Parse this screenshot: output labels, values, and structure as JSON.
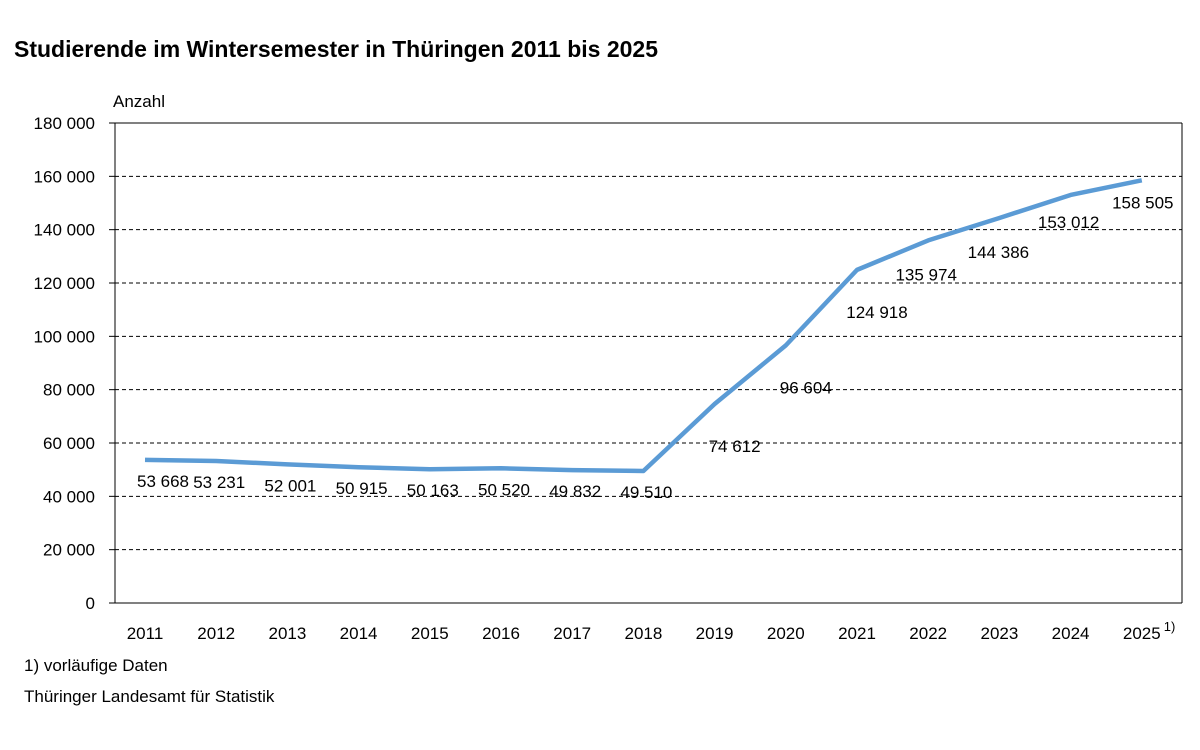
{
  "chart_data": {
    "type": "line",
    "title": "Studierende im Wintersemester in Thüringen 2011 bis 2025",
    "ylabel": "Anzahl",
    "xlabel": "",
    "categories": [
      "2011",
      "2012",
      "2013",
      "2014",
      "2015",
      "2016",
      "2017",
      "2018",
      "2019",
      "2020",
      "2021",
      "2022",
      "2023",
      "2024",
      "2025"
    ],
    "category_superscripts": {
      "2025": "1)"
    },
    "series": [
      {
        "values": [
          53668,
          53231,
          52001,
          50915,
          50163,
          50520,
          49832,
          49510,
          74612,
          96604,
          124918,
          135974,
          144386,
          153012,
          158505
        ],
        "data_labels": [
          "53 668",
          "53 231",
          "52 001",
          "50 915",
          "50 163",
          "50 520",
          "49 832",
          "49 510",
          "74 612",
          "96 604",
          "124 918",
          "135 974",
          "144 386",
          "153 012",
          "158 505"
        ],
        "color": "#5b9bd5"
      }
    ],
    "ylim": [
      0,
      180000
    ],
    "yticks": [
      0,
      20000,
      40000,
      60000,
      80000,
      100000,
      120000,
      140000,
      160000,
      180000
    ],
    "ytick_labels": [
      "0",
      "20 000",
      "40 000",
      "60 000",
      "80 000",
      "100 000",
      "120 000",
      "140 000",
      "160 000",
      "180 000"
    ],
    "grid": "horizontal dashed",
    "legend": "none"
  },
  "footnote": "1) vorläufige Daten",
  "source": "Thüringer Landesamt für Statistik"
}
